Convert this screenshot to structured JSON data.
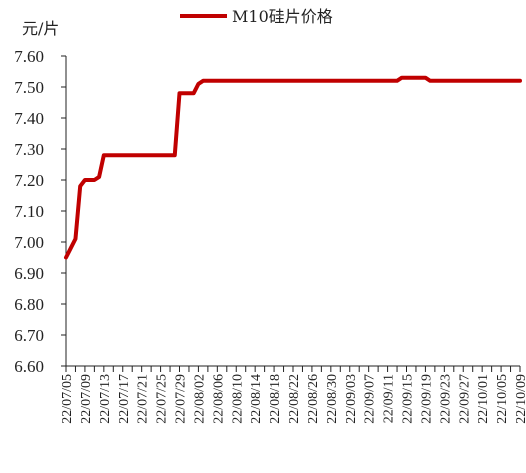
{
  "chart_data": {
    "type": "line",
    "ylabel": "元/片",
    "ylim": [
      6.6,
      7.6
    ],
    "yticks": [
      "7.60",
      "7.50",
      "7.40",
      "7.30",
      "7.20",
      "7.10",
      "7.00",
      "6.90",
      "6.80",
      "6.70",
      "6.60"
    ],
    "xticks": [
      "22/07/05",
      "22/07/09",
      "22/07/13",
      "22/07/17",
      "22/07/21",
      "22/07/25",
      "22/07/29",
      "22/08/02",
      "22/08/06",
      "22/08/10",
      "22/08/14",
      "22/08/18",
      "22/08/22",
      "22/08/26",
      "22/08/30",
      "22/09/03",
      "22/09/07",
      "22/09/11",
      "22/09/15",
      "22/09/19",
      "22/09/23",
      "22/09/27",
      "22/10/01",
      "22/10/05",
      "22/10/09"
    ],
    "legend_position": "top-center",
    "grid": false,
    "color": "#c00000",
    "series": [
      {
        "name": "M10硅片价格",
        "points": [
          [
            "2022-07-05",
            6.95
          ],
          [
            "2022-07-06",
            6.98
          ],
          [
            "2022-07-07",
            7.01
          ],
          [
            "2022-07-08",
            7.18
          ],
          [
            "2022-07-09",
            7.2
          ],
          [
            "2022-07-10",
            7.2
          ],
          [
            "2022-07-11",
            7.2
          ],
          [
            "2022-07-12",
            7.21
          ],
          [
            "2022-07-13",
            7.28
          ],
          [
            "2022-07-20",
            7.28
          ],
          [
            "2022-07-27",
            7.28
          ],
          [
            "2022-07-28",
            7.28
          ],
          [
            "2022-07-29",
            7.48
          ],
          [
            "2022-08-01",
            7.48
          ],
          [
            "2022-08-02",
            7.51
          ],
          [
            "2022-08-03",
            7.52
          ],
          [
            "2022-08-15",
            7.52
          ],
          [
            "2022-09-01",
            7.52
          ],
          [
            "2022-09-10",
            7.52
          ],
          [
            "2022-09-13",
            7.52
          ],
          [
            "2022-09-14",
            7.53
          ],
          [
            "2022-09-19",
            7.53
          ],
          [
            "2022-09-20",
            7.52
          ],
          [
            "2022-10-01",
            7.52
          ],
          [
            "2022-10-09",
            7.52
          ]
        ]
      }
    ]
  }
}
